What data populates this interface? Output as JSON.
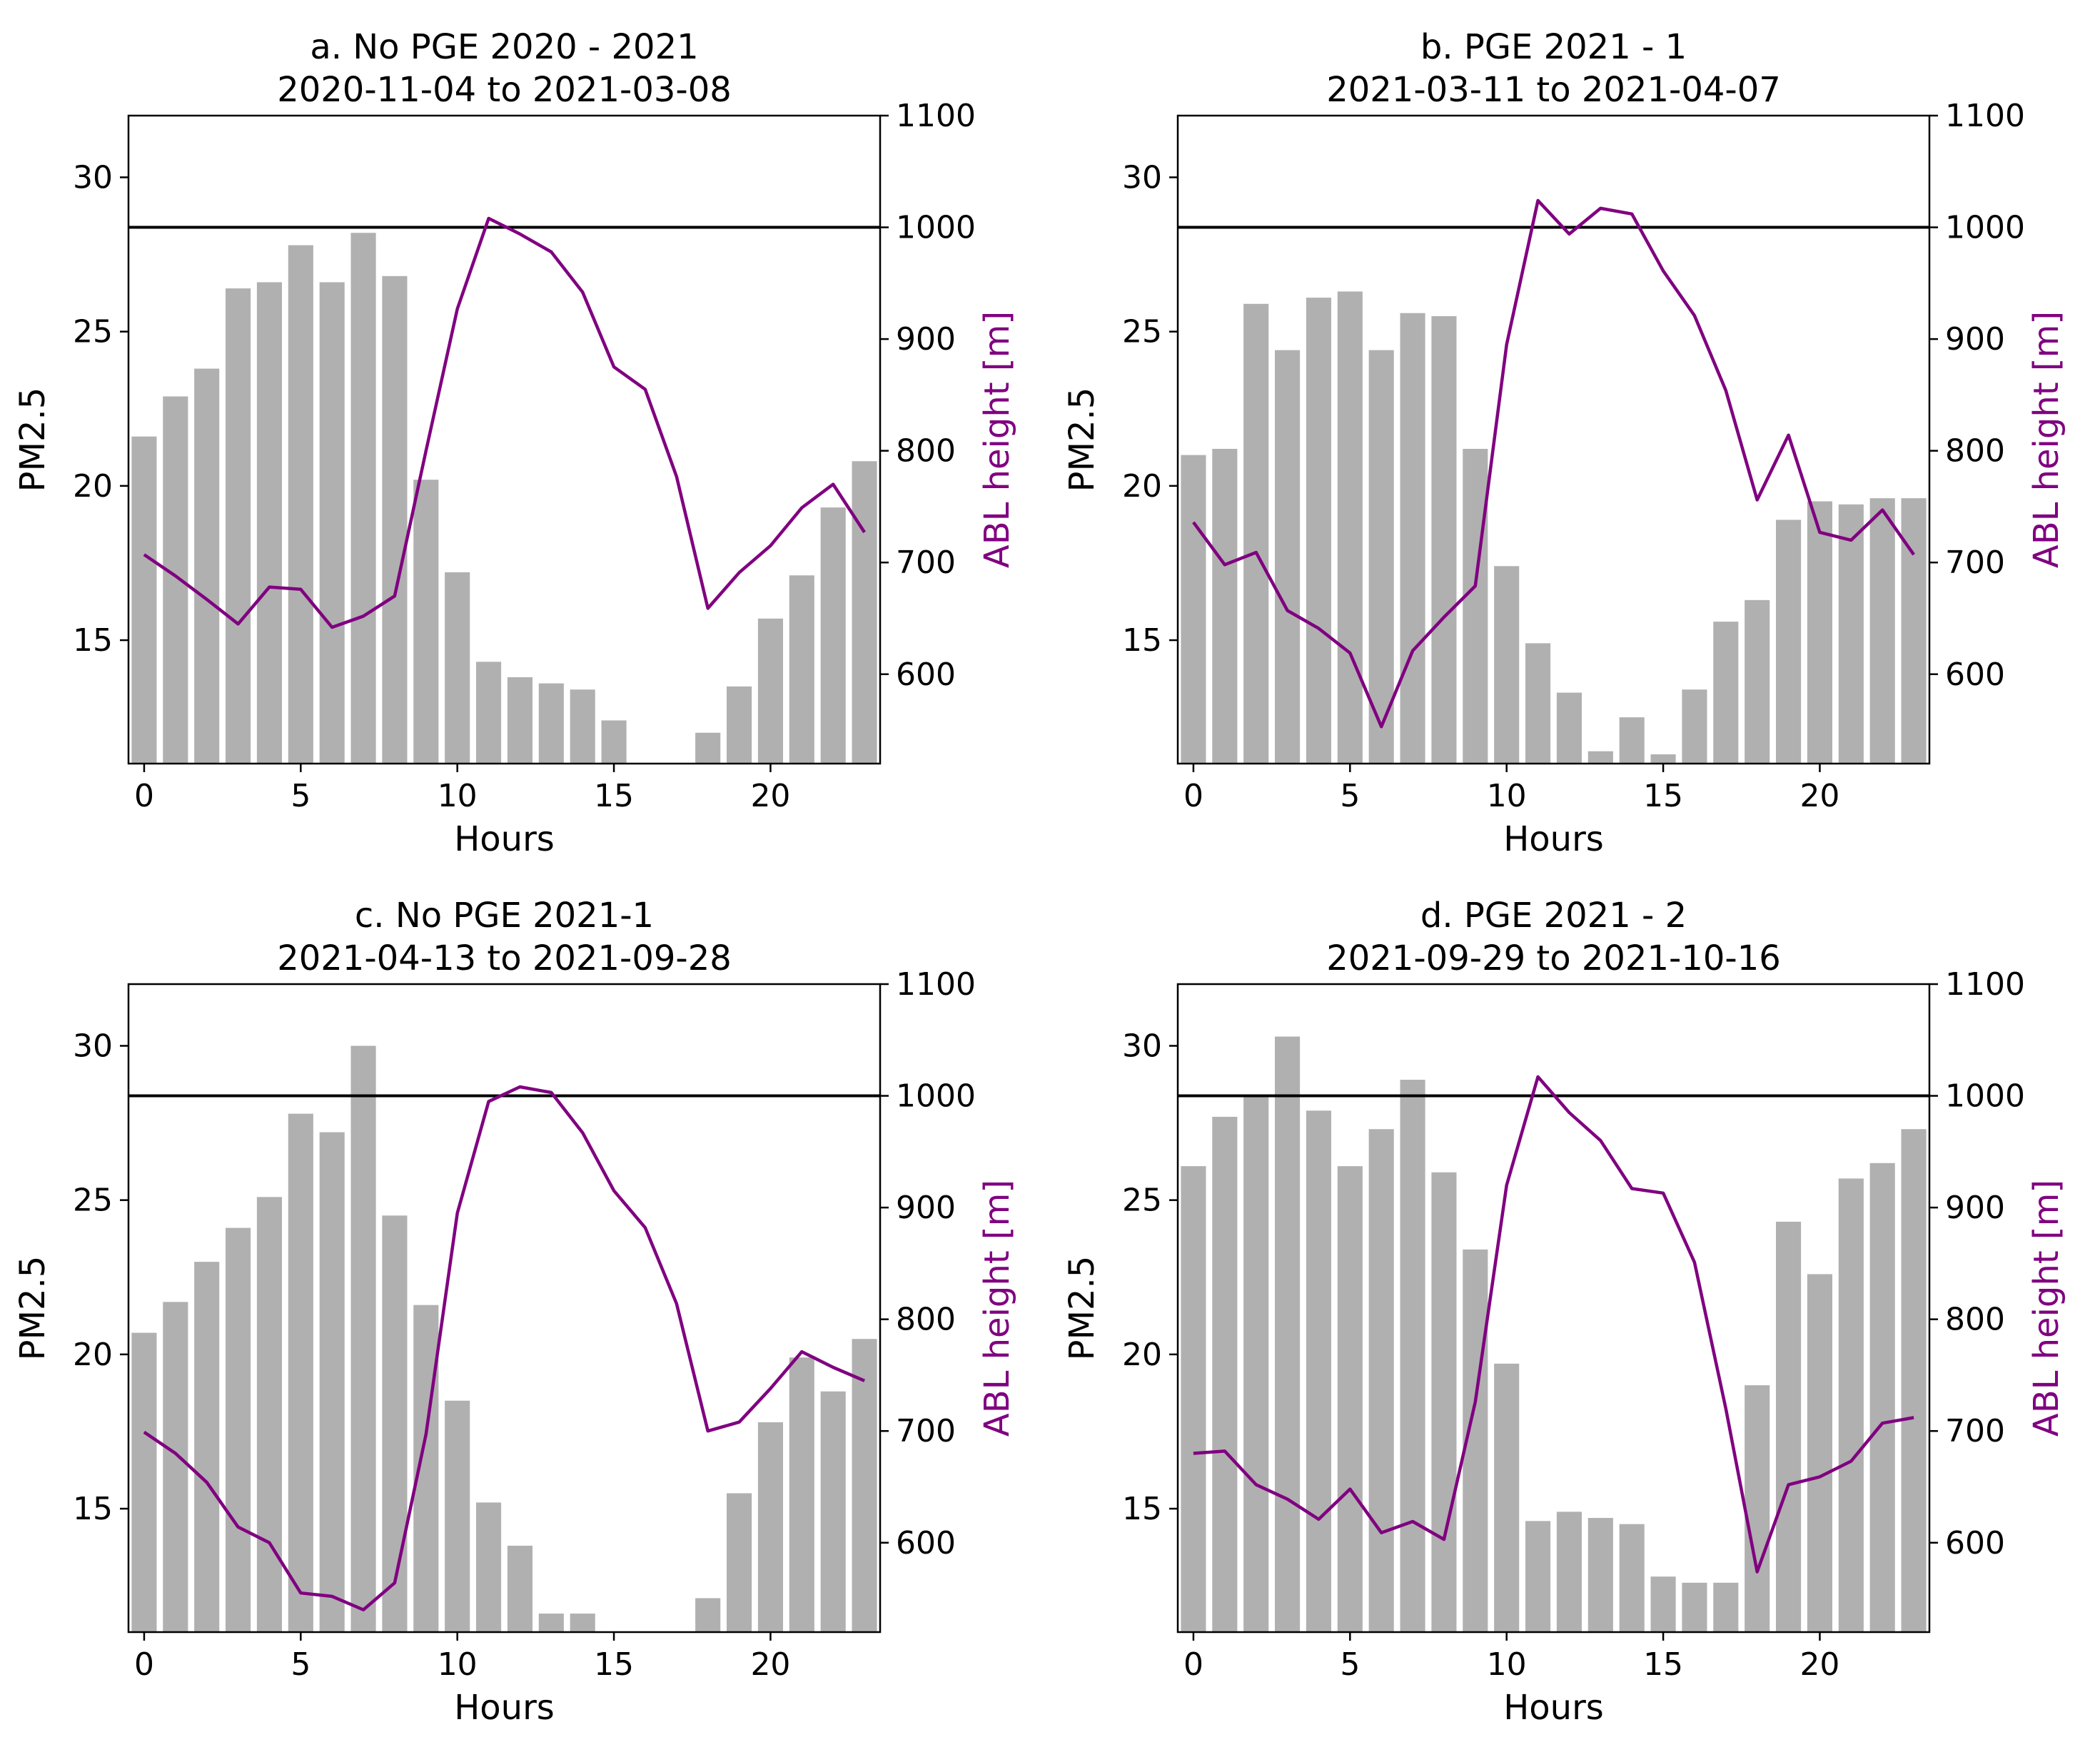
{
  "figure": {
    "colors": {
      "bar": "#b0b0b0",
      "line": "#800080",
      "hline": "#000000",
      "axis": "#000000"
    }
  },
  "chart_data": [
    {
      "type": "bar",
      "title": "a. No PGE 2020 - 2021",
      "subtitle": "2020-11-04 to 2021-03-08",
      "xlabel": "Hours",
      "ylabel": "PM2.5",
      "y2label": "ABL height [m]",
      "xlim": [
        -0.5,
        23.5
      ],
      "ylim": [
        11,
        32
      ],
      "y2lim": [
        520,
        1100
      ],
      "xticks": [
        "0",
        "5",
        "10",
        "15",
        "20"
      ],
      "yticks": [
        "15",
        "20",
        "25",
        "30"
      ],
      "y2ticks": [
        "600",
        "700",
        "800",
        "900",
        "1000",
        "1100"
      ],
      "hline": 1000,
      "x": [
        0,
        1,
        2,
        3,
        4,
        5,
        6,
        7,
        8,
        9,
        10,
        11,
        12,
        13,
        14,
        15,
        16,
        17,
        18,
        19,
        20,
        21,
        22,
        23
      ],
      "series": [
        {
          "name": "PM2.5",
          "axis": "left",
          "values": [
            21.6,
            22.9,
            23.8,
            26.4,
            26.6,
            27.8,
            26.6,
            28.2,
            26.8,
            20.2,
            17.2,
            14.3,
            13.8,
            13.6,
            13.4,
            12.4,
            11,
            11,
            12,
            13.5,
            15.7,
            17.1,
            19.3,
            20.8
          ]
        },
        {
          "name": "ABL height",
          "axis": "right",
          "values": [
            707,
            688,
            667,
            645,
            678,
            676,
            642,
            652,
            670,
            800,
            927,
            1008,
            994,
            978,
            942,
            875,
            855,
            777,
            659,
            691,
            715,
            749,
            770,
            727
          ]
        }
      ]
    },
    {
      "type": "bar",
      "title": "b. PGE 2021 - 1",
      "subtitle": "2021-03-11 to 2021-04-07",
      "xlabel": "Hours",
      "ylabel": "PM2.5",
      "y2label": "ABL height [m]",
      "xlim": [
        -0.5,
        23.5
      ],
      "ylim": [
        11,
        32
      ],
      "y2lim": [
        520,
        1100
      ],
      "xticks": [
        "0",
        "5",
        "10",
        "15",
        "20"
      ],
      "yticks": [
        "15",
        "20",
        "25",
        "30"
      ],
      "y2ticks": [
        "600",
        "700",
        "800",
        "900",
        "1000",
        "1100"
      ],
      "hline": 1000,
      "x": [
        0,
        1,
        2,
        3,
        4,
        5,
        6,
        7,
        8,
        9,
        10,
        11,
        12,
        13,
        14,
        15,
        16,
        17,
        18,
        19,
        20,
        21,
        22,
        23
      ],
      "series": [
        {
          "name": "PM2.5",
          "axis": "left",
          "values": [
            21,
            21.2,
            25.9,
            24.4,
            26.1,
            26.3,
            24.4,
            25.6,
            25.5,
            21.2,
            17.4,
            14.9,
            13.3,
            11.4,
            12.5,
            11.3,
            13.4,
            15.6,
            16.3,
            18.9,
            19.5,
            19.4,
            19.6,
            19.6
          ]
        },
        {
          "name": "ABL height",
          "axis": "right",
          "values": [
            736,
            698,
            709,
            657,
            641,
            619,
            553,
            621,
            651,
            679,
            895,
            1024,
            994,
            1017,
            1012,
            961,
            921,
            854,
            756,
            814,
            727,
            720,
            747,
            707
          ]
        }
      ]
    },
    {
      "type": "bar",
      "title": "c. No PGE 2021-1",
      "subtitle": "2021-04-13 to 2021-09-28",
      "xlabel": "Hours",
      "ylabel": "PM2.5",
      "y2label": "ABL height [m]",
      "xlim": [
        -0.5,
        23.5
      ],
      "ylim": [
        11,
        32
      ],
      "y2lim": [
        520,
        1100
      ],
      "xticks": [
        "0",
        "5",
        "10",
        "15",
        "20"
      ],
      "yticks": [
        "15",
        "20",
        "25",
        "30"
      ],
      "y2ticks": [
        "600",
        "700",
        "800",
        "900",
        "1000",
        "1100"
      ],
      "hline": 1000,
      "x": [
        0,
        1,
        2,
        3,
        4,
        5,
        6,
        7,
        8,
        9,
        10,
        11,
        12,
        13,
        14,
        15,
        16,
        17,
        18,
        19,
        20,
        21,
        22,
        23
      ],
      "series": [
        {
          "name": "PM2.5",
          "axis": "left",
          "values": [
            20.7,
            21.7,
            23,
            24.1,
            25.1,
            27.8,
            27.2,
            30,
            24.5,
            21.6,
            18.5,
            15.2,
            13.8,
            11.6,
            11.6,
            11,
            11,
            11,
            12.1,
            15.5,
            17.8,
            19.9,
            18.8,
            20.5
          ]
        },
        {
          "name": "ABL height",
          "axis": "right",
          "values": [
            699,
            680,
            654,
            614,
            600,
            555,
            552,
            540,
            564,
            697,
            895,
            995,
            1008,
            1003,
            967,
            915,
            882,
            814,
            700,
            708,
            738,
            771,
            757,
            745
          ]
        }
      ]
    },
    {
      "type": "bar",
      "title": "d. PGE 2021 - 2",
      "subtitle": "2021-09-29 to 2021-10-16",
      "xlabel": "Hours",
      "ylabel": "PM2.5",
      "y2label": "ABL height [m]",
      "xlim": [
        -0.5,
        23.5
      ],
      "ylim": [
        11,
        32
      ],
      "y2lim": [
        520,
        1100
      ],
      "xticks": [
        "0",
        "5",
        "10",
        "15",
        "20"
      ],
      "yticks": [
        "15",
        "20",
        "25",
        "30"
      ],
      "y2ticks": [
        "600",
        "700",
        "800",
        "900",
        "1000",
        "1100"
      ],
      "hline": 1000,
      "x": [
        0,
        1,
        2,
        3,
        4,
        5,
        6,
        7,
        8,
        9,
        10,
        11,
        12,
        13,
        14,
        15,
        16,
        17,
        18,
        19,
        20,
        21,
        22,
        23
      ],
      "series": [
        {
          "name": "PM2.5",
          "axis": "left",
          "values": [
            26.1,
            27.7,
            28.4,
            30.3,
            27.9,
            26.1,
            27.3,
            28.9,
            25.9,
            23.4,
            19.7,
            14.6,
            14.9,
            14.7,
            14.5,
            12.8,
            12.6,
            12.6,
            19,
            24.3,
            22.6,
            25.7,
            26.2,
            27.3
          ]
        },
        {
          "name": "ABL height",
          "axis": "right",
          "values": [
            680,
            682,
            652,
            639,
            621,
            648,
            609,
            619,
            603,
            726,
            920,
            1017,
            985,
            960,
            917,
            913,
            851,
            720,
            574,
            652,
            659,
            673,
            707,
            712
          ]
        }
      ]
    }
  ]
}
